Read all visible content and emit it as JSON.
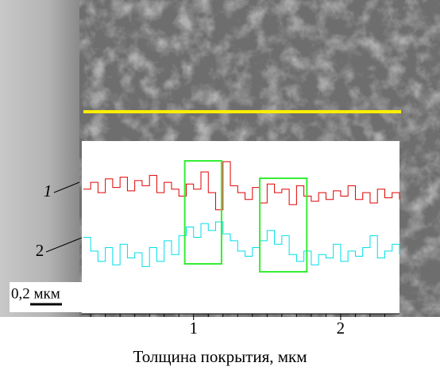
{
  "chart_data": {
    "type": "line",
    "xlabel": "Толщина покрытия, мкм",
    "scale_bar": "0,2 мкм",
    "xlim": [
      0.24,
      2.4
    ],
    "xticks": [
      1,
      2
    ],
    "minor_xticks": [
      0.3,
      0.4,
      0.5,
      0.6,
      0.7,
      0.8,
      0.9,
      1.1,
      1.2,
      1.3,
      1.4,
      1.5,
      1.6,
      1.7,
      1.8,
      1.9,
      2.1,
      2.2,
      2.3
    ],
    "ylim": [
      0,
      100
    ],
    "x": [
      0.25,
      0.3,
      0.35,
      0.4,
      0.45,
      0.5,
      0.55,
      0.6,
      0.65,
      0.7,
      0.75,
      0.8,
      0.85,
      0.9,
      0.95,
      1.0,
      1.05,
      1.1,
      1.15,
      1.2,
      1.25,
      1.3,
      1.35,
      1.4,
      1.45,
      1.5,
      1.55,
      1.6,
      1.65,
      1.7,
      1.75,
      1.8,
      1.85,
      1.9,
      1.95,
      2.0,
      2.05,
      2.1,
      2.15,
      2.2,
      2.25,
      2.3,
      2.35,
      2.4
    ],
    "series": [
      {
        "name": "1",
        "color": "#e00000",
        "values": [
          72,
          76,
          70,
          78,
          73,
          79,
          71,
          77,
          74,
          80,
          70,
          76,
          72,
          68,
          75,
          72,
          82,
          70,
          60,
          88,
          74,
          70,
          66,
          73,
          64,
          75,
          70,
          72,
          63,
          74,
          68,
          65,
          70,
          66,
          71,
          68,
          74,
          66,
          70,
          64,
          72,
          67,
          70,
          66
        ]
      },
      {
        "name": "2",
        "color": "#00dde8",
        "values": [
          44,
          36,
          30,
          38,
          28,
          40,
          32,
          35,
          27,
          38,
          30,
          42,
          34,
          45,
          50,
          44,
          52,
          48,
          53,
          46,
          42,
          36,
          33,
          38,
          42,
          48,
          40,
          45,
          34,
          30,
          36,
          28,
          34,
          32,
          40,
          30,
          36,
          33,
          38,
          45,
          32,
          36,
          40,
          34
        ]
      }
    ],
    "highlight_color": "#33ee33",
    "highlight_regions": [
      [
        0.94,
        1.19
      ],
      [
        1.45,
        1.77
      ]
    ],
    "guide_color": "#ffee00"
  }
}
